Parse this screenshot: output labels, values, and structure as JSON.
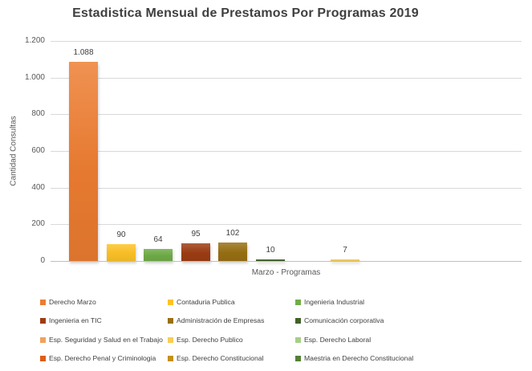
{
  "chart_data": {
    "type": "bar",
    "title": "Estadistica Mensual de Prestamos Por Programas 2019",
    "xlabel": "Marzo - Programas",
    "ylabel": "Cantidad Consultas",
    "categories": [
      "Marzo"
    ],
    "ylim": [
      0,
      1200
    ],
    "yticks": [
      0,
      200,
      400,
      600,
      800,
      1000,
      1200
    ],
    "ytick_labels": [
      "0",
      "200",
      "400",
      "600",
      "800",
      "1.000",
      "1.200"
    ],
    "grid": true,
    "legend_position": "bottom",
    "series": [
      {
        "name": "Derecho Marzo",
        "value": 1088,
        "label": "1.088",
        "color": "#ED7D31"
      },
      {
        "name": "Contaduria Publica",
        "value": 90,
        "label": "90",
        "color": "#FEC326"
      },
      {
        "name": "Ingenieria Industrial",
        "value": 64,
        "label": "64",
        "color": "#70AD47"
      },
      {
        "name": "Ingenieria en TIC",
        "value": 95,
        "label": "95",
        "color": "#9E3D13"
      },
      {
        "name": "Administración de Empresas",
        "value": 102,
        "label": "102",
        "color": "#997013"
      },
      {
        "name": "Comunicación corporativa",
        "value": 10,
        "label": "10",
        "color": "#426128"
      },
      {
        "name": "Esp. Seguridad y Salud en el Trabajo",
        "value": 0,
        "label": "",
        "color": "#F0A35C"
      },
      {
        "name": "Esp. Derecho Publico",
        "value": 7,
        "label": "7",
        "color": "#F6CE54"
      },
      {
        "name": "Esp. Derecho Laboral",
        "value": 0,
        "label": "",
        "color": "#A6CF87"
      },
      {
        "name": "Esp. Derecho Penal y Criminologia",
        "value": 0,
        "label": "",
        "color": "#DC5E16"
      },
      {
        "name": "Esp. Derecho Constitucional",
        "value": 0,
        "label": "",
        "color": "#C49112"
      },
      {
        "name": "Maestria en Derecho Constitucional",
        "value": 0,
        "label": "",
        "color": "#538135"
      }
    ],
    "colors": {
      "title_text": "#3F3F3F",
      "axis_text": "#595959",
      "label_text": "#404040",
      "gridline": "#D9D9D9",
      "axis_line": "#BFBFBF",
      "background": "#FFFFFF"
    }
  }
}
